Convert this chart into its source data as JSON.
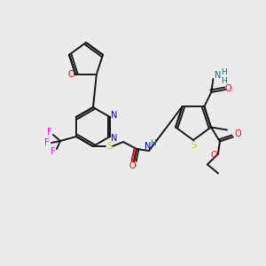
{
  "bg_color": "#ebebeb",
  "bond_color": "#1a1a1a",
  "colors": {
    "O": "#ff0000",
    "N": "#0000cc",
    "S": "#cccc00",
    "F": "#ff00ff",
    "H": "#008080",
    "C": "#1a1a1a"
  }
}
